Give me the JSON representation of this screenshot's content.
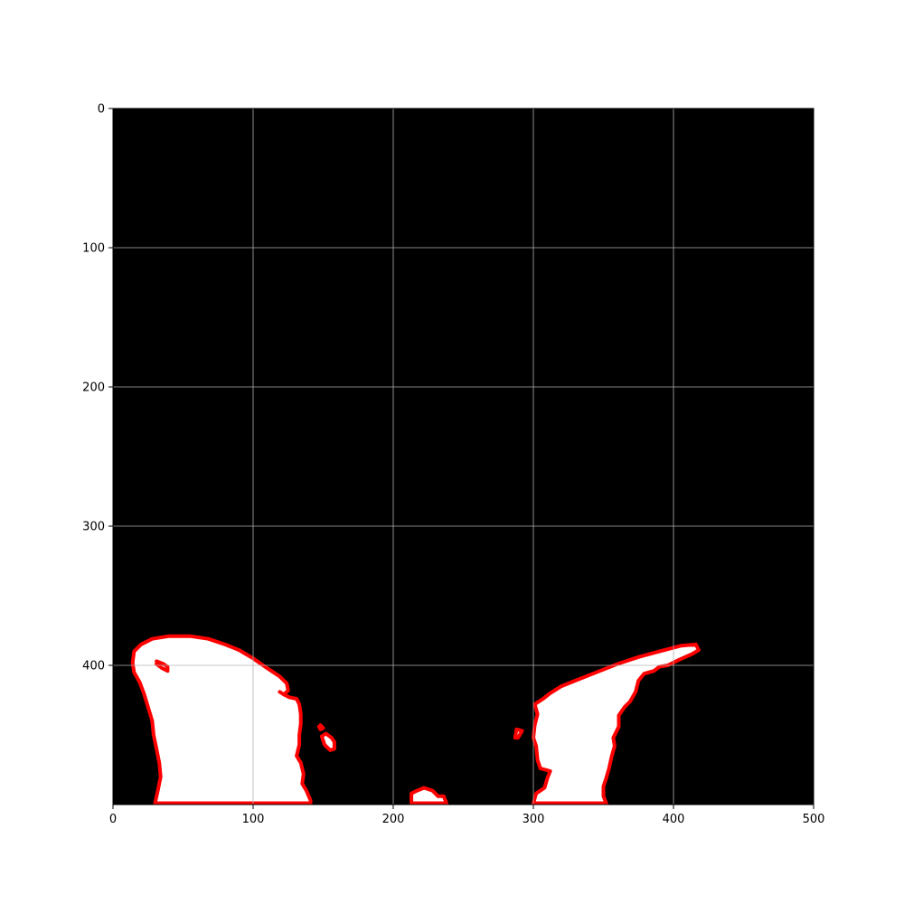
{
  "figure": {
    "background_color": "#ffffff"
  },
  "chart_data": {
    "type": "image",
    "render": "binary mask with red contour overlay",
    "title": "",
    "xlabel": "",
    "ylabel": "",
    "xlim": [
      0,
      500
    ],
    "ylim": [
      500,
      0
    ],
    "y_axis_inverted": true,
    "grid": true,
    "colors": {
      "background_mask": "#000000",
      "foreground_mask": "#ffffff",
      "contour": "#ff0000",
      "grid": "#b0b0b0",
      "axes": "#000000"
    },
    "x_ticks": [
      {
        "value": 0,
        "label": "0"
      },
      {
        "value": 100,
        "label": "100"
      },
      {
        "value": 200,
        "label": "200"
      },
      {
        "value": 300,
        "label": "300"
      },
      {
        "value": 400,
        "label": "400"
      },
      {
        "value": 500,
        "label": "500"
      }
    ],
    "y_ticks": [
      {
        "value": 0,
        "label": "0"
      },
      {
        "value": 100,
        "label": "100"
      },
      {
        "value": 200,
        "label": "200"
      },
      {
        "value": 300,
        "label": "300"
      },
      {
        "value": 400,
        "label": "400"
      }
    ],
    "regions": [
      {
        "name": "left-blob",
        "points": [
          [
            30,
            499
          ],
          [
            32,
            490
          ],
          [
            34,
            480
          ],
          [
            33,
            470
          ],
          [
            31,
            460
          ],
          [
            29,
            450
          ],
          [
            28,
            440
          ],
          [
            25,
            430
          ],
          [
            22,
            420
          ],
          [
            19,
            412
          ],
          [
            15,
            405
          ],
          [
            14,
            398
          ],
          [
            15,
            390
          ],
          [
            20,
            385
          ],
          [
            28,
            381
          ],
          [
            40,
            379
          ],
          [
            55,
            379
          ],
          [
            68,
            381
          ],
          [
            80,
            385
          ],
          [
            90,
            389
          ],
          [
            100,
            395
          ],
          [
            110,
            402
          ],
          [
            119,
            408
          ],
          [
            124,
            413
          ],
          [
            125,
            418
          ],
          [
            122,
            421
          ],
          [
            126,
            423
          ],
          [
            131,
            424
          ],
          [
            133,
            428
          ],
          [
            134,
            435
          ],
          [
            134,
            442
          ],
          [
            133,
            450
          ],
          [
            133,
            457
          ],
          [
            131,
            465
          ],
          [
            134,
            470
          ],
          [
            136,
            478
          ],
          [
            135,
            485
          ],
          [
            138,
            490
          ],
          [
            141,
            497
          ],
          [
            141,
            499
          ]
        ]
      },
      {
        "name": "bottom-center-blob",
        "points": [
          [
            213,
            499
          ],
          [
            213,
            492
          ],
          [
            217,
            490
          ],
          [
            222,
            488
          ],
          [
            228,
            490
          ],
          [
            232,
            494
          ],
          [
            236,
            494
          ],
          [
            238,
            499
          ]
        ]
      },
      {
        "name": "right-blob",
        "points": [
          [
            300,
            499
          ],
          [
            302,
            492
          ],
          [
            308,
            488
          ],
          [
            310,
            481
          ],
          [
            312,
            476
          ],
          [
            305,
            474
          ],
          [
            303,
            468
          ],
          [
            302,
            458
          ],
          [
            300,
            452
          ],
          [
            301,
            443
          ],
          [
            303,
            435
          ],
          [
            301,
            428
          ],
          [
            307,
            424
          ],
          [
            312,
            420
          ],
          [
            320,
            415
          ],
          [
            330,
            411
          ],
          [
            345,
            405
          ],
          [
            360,
            399
          ],
          [
            375,
            394
          ],
          [
            390,
            390
          ],
          [
            405,
            386
          ],
          [
            416,
            385
          ],
          [
            418,
            389
          ],
          [
            413,
            392
          ],
          [
            404,
            396
          ],
          [
            396,
            400
          ],
          [
            390,
            401
          ],
          [
            386,
            404
          ],
          [
            379,
            406
          ],
          [
            375,
            411
          ],
          [
            373,
            419
          ],
          [
            369,
            426
          ],
          [
            365,
            430
          ],
          [
            361,
            436
          ],
          [
            361,
            444
          ],
          [
            357,
            452
          ],
          [
            358,
            458
          ],
          [
            356,
            465
          ],
          [
            354,
            474
          ],
          [
            352,
            481
          ],
          [
            350,
            487
          ],
          [
            350,
            494
          ],
          [
            352,
            499
          ]
        ]
      },
      {
        "name": "small-blob-left",
        "points": [
          [
            149,
            451
          ],
          [
            152,
            449
          ],
          [
            156,
            452
          ],
          [
            158,
            455
          ],
          [
            158,
            460
          ],
          [
            155,
            461
          ],
          [
            151,
            457
          ]
        ]
      },
      {
        "name": "small-blob-right",
        "points": [
          [
            287,
            452
          ],
          [
            288,
            446
          ],
          [
            292,
            447
          ],
          [
            289,
            452
          ]
        ]
      }
    ],
    "contour_marks": [
      {
        "name": "hole-left",
        "points": [
          [
            31,
            397
          ],
          [
            36,
            399
          ],
          [
            39,
            401
          ],
          [
            39,
            404
          ],
          [
            35,
            402
          ],
          [
            31,
            399
          ]
        ]
      },
      {
        "name": "dot-near-small-blob",
        "points": [
          [
            148,
            443
          ],
          [
            150,
            445
          ],
          [
            148,
            446
          ],
          [
            147,
            444
          ]
        ]
      },
      {
        "name": "speck-under-left-blob",
        "points": [
          [
            119,
            419
          ],
          [
            122,
            421
          ]
        ]
      }
    ]
  }
}
